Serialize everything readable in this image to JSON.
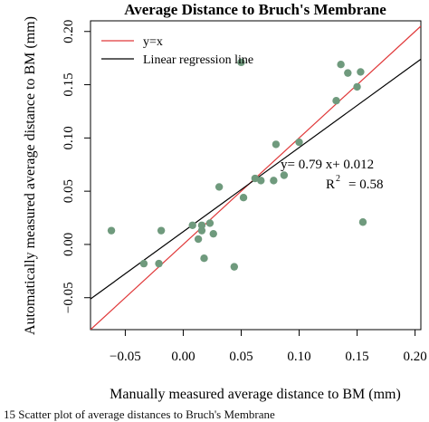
{
  "chart_data": {
    "type": "scatter",
    "title": "Average Distance to Bruch's Membrane",
    "xlabel": "Manually measured average distance to BM (mm)",
    "ylabel": "Automatically measured average distance to BM (mm)",
    "xlim": [
      -0.08,
      0.205
    ],
    "ylim": [
      -0.08,
      0.21
    ],
    "x_ticks": [
      -0.05,
      0.0,
      0.05,
      0.1,
      0.15,
      0.2
    ],
    "x_tick_labels": [
      "−0.05",
      "0.00",
      "0.05",
      "0.10",
      "0.15",
      "0.20"
    ],
    "y_ticks": [
      -0.05,
      0.0,
      0.05,
      0.1,
      0.15,
      0.2
    ],
    "y_tick_labels": [
      "−0.05",
      "0.00",
      "0.05",
      "0.10",
      "0.15",
      "0.20"
    ],
    "grid": false,
    "legend_position": "top-left",
    "legend": [
      {
        "label": "y=x",
        "color": "#e0393a"
      },
      {
        "label": "Linear regression line",
        "color": "#000000"
      }
    ],
    "lines": [
      {
        "name": "y=x",
        "slope": 1.0,
        "intercept": 0.0,
        "color": "#e0393a"
      },
      {
        "name": "Linear regression line",
        "slope": 0.79,
        "intercept": 0.012,
        "color": "#000000"
      }
    ],
    "annotation": {
      "equation": "y= 0.79 x+ 0.012",
      "r2_label": "R",
      "r2_sup": "2",
      "r2_value": "= 0.58"
    },
    "point_color": "#6f9a7d",
    "points": [
      {
        "x": -0.062,
        "y": 0.013
      },
      {
        "x": -0.034,
        "y": -0.018
      },
      {
        "x": -0.021,
        "y": -0.018
      },
      {
        "x": -0.019,
        "y": 0.013
      },
      {
        "x": 0.008,
        "y": 0.018
      },
      {
        "x": 0.013,
        "y": 0.005
      },
      {
        "x": 0.016,
        "y": 0.013
      },
      {
        "x": 0.016,
        "y": 0.018
      },
      {
        "x": 0.018,
        "y": -0.013
      },
      {
        "x": 0.023,
        "y": 0.02
      },
      {
        "x": 0.026,
        "y": 0.01
      },
      {
        "x": 0.031,
        "y": 0.054
      },
      {
        "x": 0.044,
        "y": -0.021
      },
      {
        "x": 0.05,
        "y": 0.171
      },
      {
        "x": 0.052,
        "y": 0.044
      },
      {
        "x": 0.062,
        "y": 0.062
      },
      {
        "x": 0.067,
        "y": 0.06
      },
      {
        "x": 0.078,
        "y": 0.06
      },
      {
        "x": 0.08,
        "y": 0.094
      },
      {
        "x": 0.087,
        "y": 0.065
      },
      {
        "x": 0.1,
        "y": 0.096
      },
      {
        "x": 0.132,
        "y": 0.135
      },
      {
        "x": 0.136,
        "y": 0.169
      },
      {
        "x": 0.142,
        "y": 0.161
      },
      {
        "x": 0.15,
        "y": 0.148
      },
      {
        "x": 0.153,
        "y": 0.162
      },
      {
        "x": 0.155,
        "y": 0.021
      }
    ]
  },
  "caption": {
    "text": "15    Scatter plot of average distances to Bruch's Membrane"
  }
}
